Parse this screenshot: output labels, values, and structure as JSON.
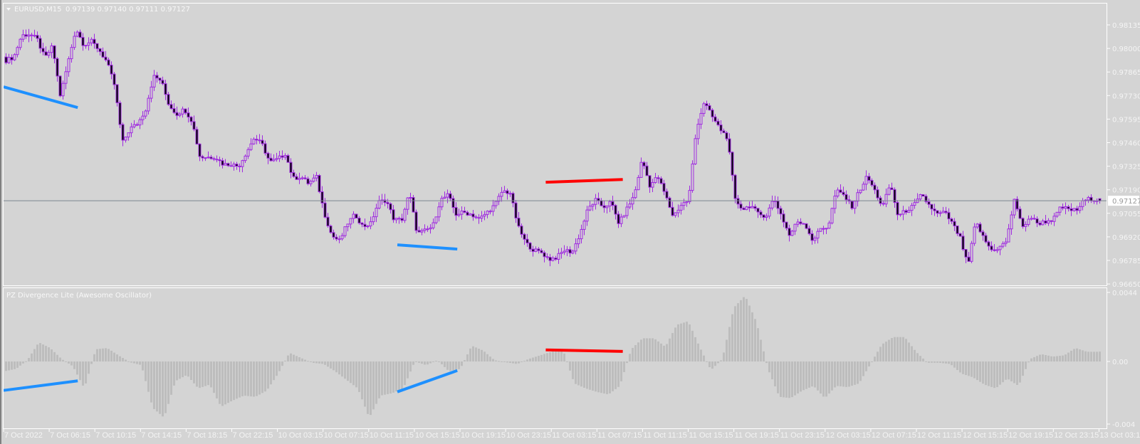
{
  "header": {
    "symbol_label": "EURUSD,M15",
    "ohlc_text": "0.97139 0.97140 0.97111 0.97127",
    "dropdown_icon": "triangle-down-icon"
  },
  "colors": {
    "background": "#d4d4d4",
    "frame": "#ffffff",
    "candle_outline": "#a02be0",
    "bear_body": "#000000",
    "price_line": "#7d8790",
    "histogram": "#bdbdbd",
    "bullish_divergence": "#1e90ff",
    "bearish_divergence": "#ff0000",
    "axis_text": "#f4f4f4"
  },
  "time_axis": {
    "labels": [
      "7 Oct 2022",
      "7 Oct 06:15",
      "7 Oct 10:15",
      "7 Oct 14:15",
      "7 Oct 18:15",
      "7 Oct 22:15",
      "10 Oct 03:15",
      "10 Oct 07:15",
      "10 Oct 11:15",
      "10 Oct 15:15",
      "10 Oct 19:15",
      "10 Oct 23:15",
      "11 Oct 03:15",
      "11 Oct 07:15",
      "11 Oct 11:15",
      "11 Oct 15:15",
      "11 Oct 19:15",
      "11 Oct 23:15",
      "12 Oct 03:15",
      "12 Oct 07:15",
      "12 Oct 11:15",
      "12 Oct 15:15",
      "12 Oct 19:15",
      "12 Oct 23:15",
      "13 Oct 03:15"
    ]
  },
  "chart_data": [
    {
      "type": "candlestick",
      "title": "EURUSD,M15",
      "timeframe": "M15",
      "last_bar": {
        "open": 0.97139,
        "high": 0.9714,
        "low": 0.97111,
        "close": 0.97127
      },
      "current_price": 0.97127,
      "current_price_label": "0.97127",
      "ylim": [
        0.9665,
        0.98135
      ],
      "ytick_labels": [
        "0.98135",
        "0.98000",
        "0.97865",
        "0.97730",
        "0.97595",
        "0.97460",
        "0.97325",
        "0.97190",
        "0.97055",
        "0.96920",
        "0.96785",
        "0.96650"
      ],
      "x_range": [
        "7 Oct 02:15",
        "13 Oct 03:15"
      ],
      "approx_close_path": [
        0.97931,
        0.97951,
        0.98074,
        0.98082,
        0.98054,
        0.97943,
        0.98013,
        0.97726,
        0.97922,
        0.98115,
        0.98021,
        0.98041,
        0.97992,
        0.97922,
        0.97787,
        0.97459,
        0.97541,
        0.9757,
        0.97652,
        0.9784,
        0.97816,
        0.97676,
        0.97623,
        0.97652,
        0.97582,
        0.97377,
        0.97377,
        0.97377,
        0.97336,
        0.97336,
        0.97324,
        0.97406,
        0.97488,
        0.97451,
        0.97348,
        0.97365,
        0.97398,
        0.97254,
        0.97266,
        0.97225,
        0.97266,
        0.97061,
        0.96926,
        0.96897,
        0.96996,
        0.97049,
        0.96979,
        0.96996,
        0.97119,
        0.97131,
        0.9702,
        0.97016,
        0.97172,
        0.96938,
        0.96955,
        0.96979,
        0.97131,
        0.9716,
        0.97049,
        0.97061,
        0.97049,
        0.9702,
        0.97061,
        0.97102,
        0.97184,
        0.97172,
        0.96979,
        0.96885,
        0.96844,
        0.96832,
        0.96791,
        0.96803,
        0.96844,
        0.96832,
        0.96938,
        0.97078,
        0.97131,
        0.9709,
        0.97119,
        0.96996,
        0.97078,
        0.9716,
        0.97365,
        0.97213,
        0.97266,
        0.9716,
        0.97037,
        0.97102,
        0.97131,
        0.97541,
        0.97693,
        0.97611,
        0.97541,
        0.97488,
        0.97131,
        0.97078,
        0.97102,
        0.97049,
        0.97041,
        0.97143,
        0.97037,
        0.96926,
        0.97008,
        0.96996,
        0.96897,
        0.96967,
        0.96979,
        0.97184,
        0.9716,
        0.9709,
        0.97184,
        0.97266,
        0.97184,
        0.9709,
        0.97225,
        0.97037,
        0.9707,
        0.97098,
        0.9716,
        0.97102,
        0.97049,
        0.97061,
        0.96996,
        0.96914,
        0.9675,
        0.97008,
        0.96914,
        0.96844,
        0.96856,
        0.96897,
        0.97143,
        0.96967,
        0.97037,
        0.96996,
        0.97008,
        0.9702,
        0.9709,
        0.97078,
        0.9707,
        0.9713,
        0.9714,
        0.97127
      ],
      "divergence_lines": [
        {
          "type": "bullish",
          "from": {
            "time": "7 Oct 02:15",
            "price": 0.9778
          },
          "to": {
            "time": "7 Oct 08:45",
            "price": 0.97661
          }
        },
        {
          "type": "bullish",
          "from": {
            "time": "10 Oct 13:45",
            "price": 0.96874
          },
          "to": {
            "time": "10 Oct 19:00",
            "price": 0.9685
          }
        },
        {
          "type": "bearish",
          "from": {
            "time": "11 Oct 02:45",
            "price": 0.97233
          },
          "to": {
            "time": "11 Oct 09:30",
            "price": 0.97249
          }
        }
      ]
    },
    {
      "type": "bar",
      "title": "PZ Divergence Lite (Awesome Oscillator)",
      "ylim": [
        -0.004,
        0.0044
      ],
      "ytick_labels": [
        "0.0044",
        "0.00",
        "-0.004"
      ],
      "approx_values_hourly": [
        -0.00062,
        -0.00047,
        8e-05,
        0.00122,
        0.00086,
        0.00016,
        -0.00031,
        -0.00172,
        0.00078,
        0.00086,
        0.00039,
        -5e-05,
        -0.00023,
        -0.00296,
        -0.00359,
        -0.00125,
        -0.00086,
        -0.00172,
        -0.00148,
        -0.00289,
        -0.0025,
        -0.00218,
        -0.00226,
        -0.00187,
        -0.00078,
        0.00055,
        0.00023,
        -8e-05,
        -0.00016,
        -0.00062,
        -0.00117,
        -0.00172,
        -0.00359,
        -0.00218,
        -0.00203,
        -0.00172,
        0,
        -0.00023,
        8e-05,
        -0.00062,
        -0.00047,
        0.00101,
        0.0007,
        8e-05,
        -5e-05,
        -0.00016,
        0.00016,
        0.00039,
        0.00062,
        0.00078,
        -0.0014,
        -0.00172,
        -0.00195,
        -0.00211,
        -0.00156,
        0.00078,
        0.00148,
        0.00148,
        0.00094,
        0.00234,
        0.00257,
        0.00094,
        -0.00055,
        0.00016,
        0.00343,
        0.00421,
        0.0025,
        -0.00047,
        -0.00226,
        -0.00234,
        -0.00187,
        -0.00156,
        -0.00234,
        -0.00156,
        -0.00164,
        -0.0014,
        -0.00016,
        0.00109,
        0.00156,
        0.00156,
        0.00062,
        -8e-05,
        -8e-05,
        -0.00016,
        -0.00078,
        -0.00101,
        -0.00148,
        -0.00172,
        -0.00109,
        -0.00156,
        0.00016,
        0.00047,
        0.00031,
        0.00039,
        0.00086,
        0.00062,
        0.00062,
        0.0007
      ],
      "divergence_lines": [
        {
          "type": "bullish",
          "from": {
            "time": "7 Oct 02:15",
            "value": -0.00185
          },
          "to": {
            "time": "7 Oct 08:45",
            "value": -0.00124
          }
        },
        {
          "type": "bullish",
          "from": {
            "time": "10 Oct 13:45",
            "value": -0.00194
          },
          "to": {
            "time": "10 Oct 19:00",
            "value": -0.00058
          }
        },
        {
          "type": "bearish",
          "from": {
            "time": "11 Oct 02:45",
            "value": 0.00074
          },
          "to": {
            "time": "11 Oct 09:30",
            "value": 0.00064
          }
        }
      ]
    }
  ]
}
